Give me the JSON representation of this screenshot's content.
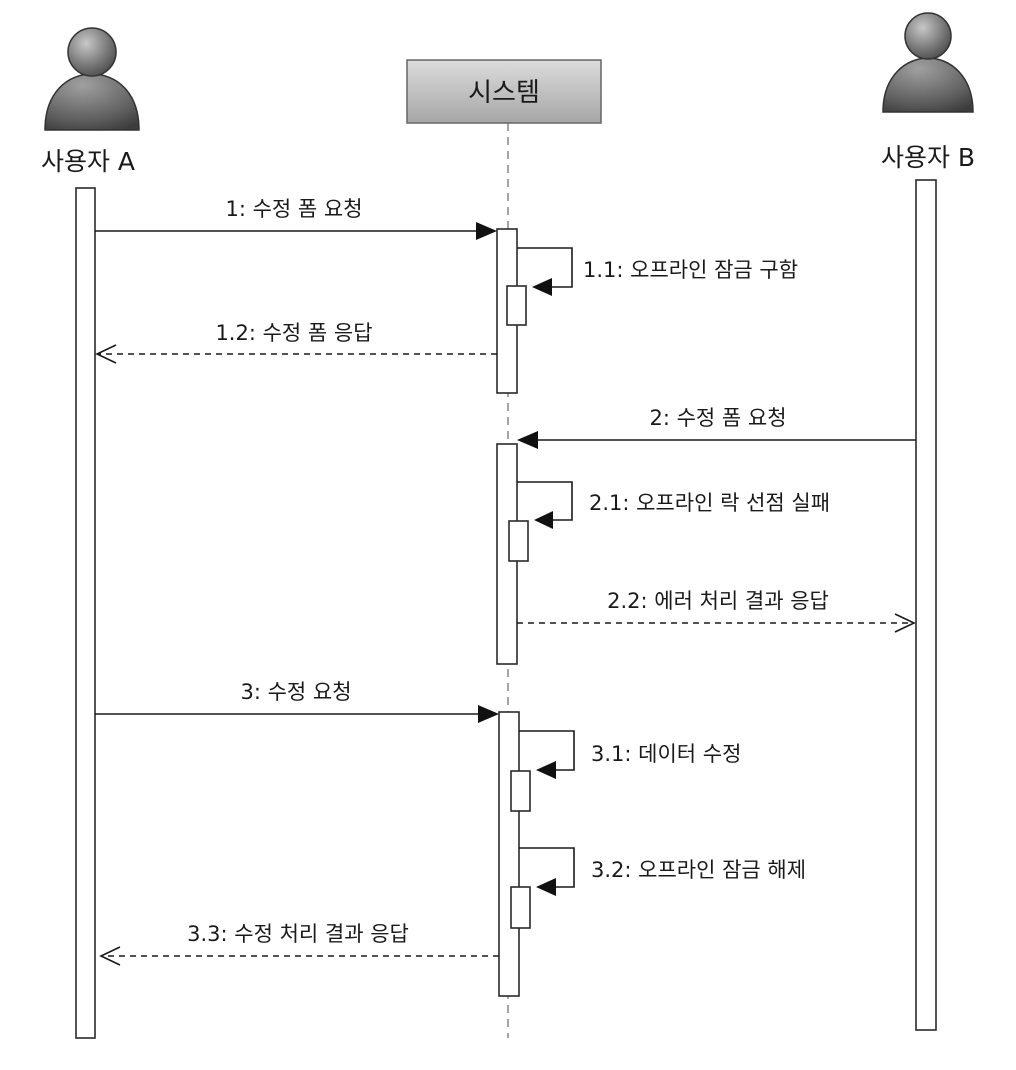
{
  "participants": {
    "user_a": "사용자 A",
    "system": "시스템",
    "user_b": "사용자 B"
  },
  "messages": [
    {
      "label": "1: 수정 폼 요청"
    },
    {
      "label": "1.1: 오프라인 잠금 구함"
    },
    {
      "label": "1.2: 수정 폼 응답"
    },
    {
      "label": "2: 수정 폼 요청"
    },
    {
      "label": "2.1: 오프라인 락 선점 실패"
    },
    {
      "label": "2.2: 에러 처리 결과 응답"
    },
    {
      "label": "3: 수정 요청"
    },
    {
      "label": "3.1: 데이터 수정"
    },
    {
      "label": "3.2: 오프라인 잠금 해제"
    },
    {
      "label": "3.3: 수정 처리 결과 응답"
    }
  ]
}
